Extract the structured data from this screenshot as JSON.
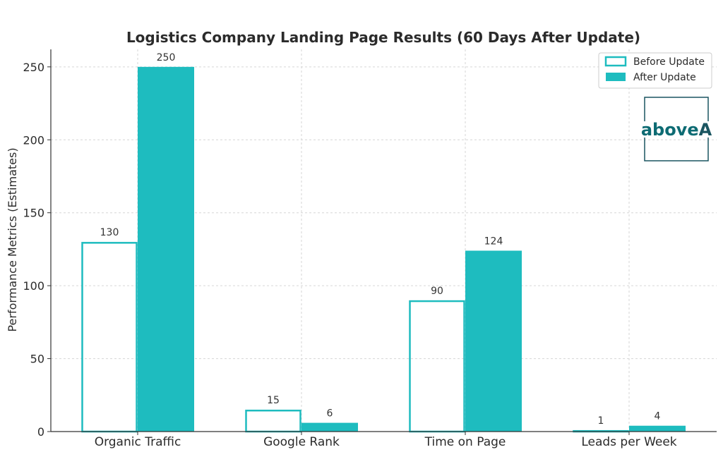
{
  "chart_data": {
    "type": "bar",
    "title": "Logistics Company Landing Page Results (60 Days After Update)",
    "xlabel": "",
    "ylabel": "Performance Metrics (Estimates)",
    "categories": [
      "Organic Traffic",
      "Google Rank",
      "Time on Page",
      "Leads per Week"
    ],
    "series": [
      {
        "name": "Before Update",
        "values": [
          130,
          15,
          90,
          1
        ],
        "style": "outline",
        "color": "#1ebcbf"
      },
      {
        "name": "After Update",
        "values": [
          250,
          6,
          124,
          4
        ],
        "style": "filled",
        "color": "#1ebcbf"
      }
    ],
    "ylim": [
      0,
      262
    ],
    "yticks": [
      0,
      50,
      100,
      150,
      200,
      250
    ],
    "grid": true,
    "legend_position": "top-right"
  },
  "logo": {
    "text_main": "above",
    "text_accent": "A",
    "color_main": "#0d6b73",
    "color_accent": "#1a5560",
    "frame_color": "#1a5560"
  },
  "colors": {
    "accent": "#1ebcbf",
    "grid": "#d6d6d6",
    "axis": "#333333"
  }
}
